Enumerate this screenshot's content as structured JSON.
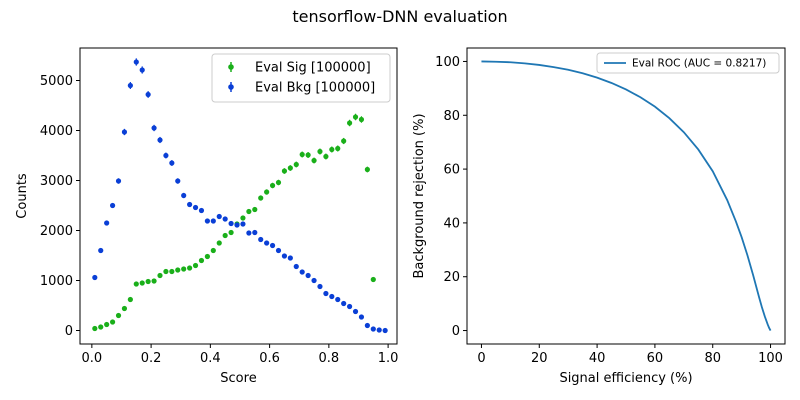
{
  "figure": {
    "title": "tensorflow-DNN evaluation"
  },
  "chart_data": [
    {
      "type": "scatter",
      "xlabel": "Score",
      "ylabel": "Counts",
      "xlim": [
        -0.04,
        1.03
      ],
      "ylim": [
        -270,
        5650
      ],
      "x_ticks": [
        0.0,
        0.2,
        0.4,
        0.6,
        0.8,
        1.0
      ],
      "x_tick_labels": [
        "0.0",
        "0.2",
        "0.4",
        "0.6",
        "0.8",
        "1.0"
      ],
      "y_ticks": [
        0,
        1000,
        2000,
        3000,
        4000,
        5000
      ],
      "y_tick_labels": [
        "0",
        "1000",
        "2000",
        "3000",
        "4000",
        "5000"
      ],
      "legend_placement": "upper right",
      "series": [
        {
          "name": "Eval Sig [100000]",
          "color": "#1aaf1a",
          "x": [
            0.01,
            0.03,
            0.05,
            0.07,
            0.09,
            0.11,
            0.13,
            0.15,
            0.17,
            0.19,
            0.21,
            0.23,
            0.25,
            0.27,
            0.29,
            0.31,
            0.33,
            0.35,
            0.37,
            0.39,
            0.41,
            0.43,
            0.45,
            0.47,
            0.49,
            0.51,
            0.53,
            0.55,
            0.57,
            0.59,
            0.61,
            0.63,
            0.65,
            0.67,
            0.69,
            0.71,
            0.73,
            0.75,
            0.77,
            0.79,
            0.81,
            0.83,
            0.85,
            0.87,
            0.89,
            0.91,
            0.93,
            0.95
          ],
          "y": [
            40,
            70,
            120,
            170,
            300,
            440,
            620,
            930,
            950,
            980,
            990,
            1100,
            1180,
            1180,
            1210,
            1230,
            1250,
            1300,
            1400,
            1480,
            1600,
            1750,
            1900,
            1960,
            2130,
            2250,
            2380,
            2420,
            2650,
            2770,
            2900,
            2960,
            3190,
            3250,
            3320,
            3520,
            3510,
            3400,
            3580,
            3480,
            3620,
            3640,
            3790,
            4150,
            4270,
            4220,
            3220,
            1020
          ]
        },
        {
          "name": "Eval Bkg [100000]",
          "color": "#0a3fd6",
          "x": [
            0.01,
            0.03,
            0.05,
            0.07,
            0.09,
            0.11,
            0.13,
            0.15,
            0.17,
            0.19,
            0.21,
            0.23,
            0.25,
            0.27,
            0.29,
            0.31,
            0.33,
            0.35,
            0.37,
            0.39,
            0.41,
            0.43,
            0.45,
            0.47,
            0.49,
            0.51,
            0.53,
            0.55,
            0.57,
            0.59,
            0.61,
            0.63,
            0.65,
            0.67,
            0.69,
            0.71,
            0.73,
            0.75,
            0.77,
            0.79,
            0.81,
            0.83,
            0.85,
            0.87,
            0.89,
            0.91,
            0.93,
            0.95,
            0.97,
            0.99
          ],
          "y": [
            1060,
            1600,
            2150,
            2500,
            2990,
            3970,
            4900,
            5370,
            5210,
            4720,
            4050,
            3810,
            3500,
            3350,
            2990,
            2700,
            2520,
            2460,
            2400,
            2190,
            2190,
            2280,
            2230,
            2140,
            2110,
            2130,
            1950,
            1960,
            1820,
            1750,
            1700,
            1600,
            1490,
            1450,
            1280,
            1170,
            1100,
            1000,
            880,
            740,
            680,
            620,
            540,
            480,
            380,
            270,
            100,
            30,
            10,
            0
          ]
        }
      ]
    },
    {
      "type": "line",
      "xlabel": "Signal efficiency (%)",
      "ylabel": "Background rejection (%)",
      "xlim": [
        -5,
        105
      ],
      "ylim": [
        -5,
        105
      ],
      "x_ticks": [
        0,
        20,
        40,
        60,
        80,
        100
      ],
      "x_tick_labels": [
        "0",
        "20",
        "40",
        "60",
        "80",
        "100"
      ],
      "y_ticks": [
        0,
        20,
        40,
        60,
        80,
        100
      ],
      "y_tick_labels": [
        "0",
        "20",
        "40",
        "60",
        "80",
        "100"
      ],
      "legend_placement": "upper right",
      "series": [
        {
          "name": "Eval ROC (AUC = 0.8217)",
          "color": "#1f77b4",
          "x": [
            0,
            5,
            10,
            15,
            20,
            25,
            30,
            35,
            40,
            45,
            50,
            55,
            60,
            65,
            70,
            75,
            80,
            85,
            88,
            90,
            92,
            94,
            96,
            97,
            98,
            99,
            99.5,
            100
          ],
          "y": [
            100,
            99.9,
            99.7,
            99.3,
            98.7,
            97.9,
            96.9,
            95.6,
            94.0,
            92.0,
            89.6,
            86.7,
            83.2,
            78.9,
            73.7,
            67.3,
            59.2,
            48.5,
            40.6,
            34.7,
            28.0,
            20.5,
            12.5,
            8.7,
            5.3,
            2.3,
            1.0,
            0
          ]
        }
      ]
    }
  ]
}
